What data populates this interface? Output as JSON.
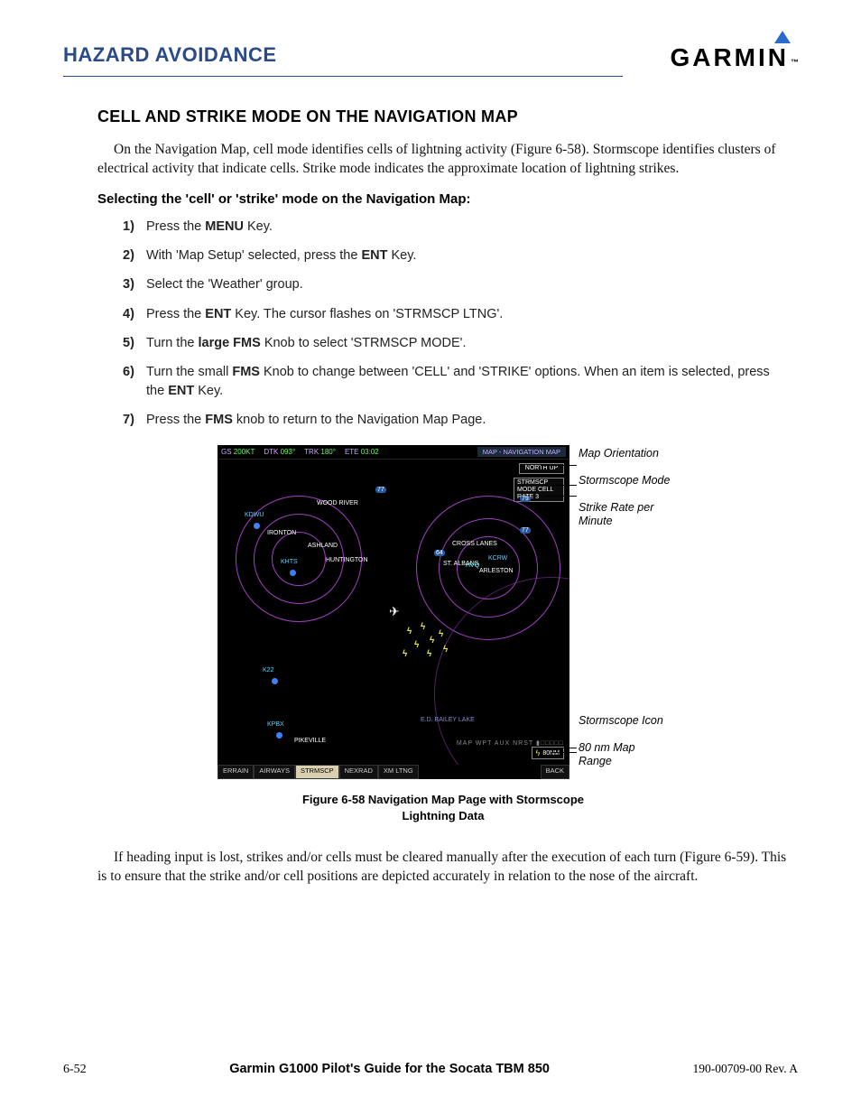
{
  "header": {
    "section": "HAZARD AVOIDANCE",
    "brand": "GARMIN"
  },
  "title": "CELL AND STRIKE MODE ON THE NAVIGATION MAP",
  "intro": "On the Navigation Map, cell mode identifies cells of lightning activity (Figure 6-58).  Stormscope identifies clusters of electrical activity that indicate cells.  Strike mode indicates the approximate location of lightning strikes.",
  "proc_title": "Selecting the 'cell' or 'strike' mode on the Navigation Map:",
  "steps": [
    "Press the <b>MENU</b> Key.",
    "With 'Map Setup' selected, press the <b>ENT</b> Key.",
    "Select the 'Weather' group.",
    "Press the <b>ENT</b> Key.  The cursor flashes on 'STRMSCP LTNG'.",
    "Turn the <b>large FMS</b> Knob to select 'STRMSCP MODE'.",
    "Turn the small <b>FMS</b> Knob to change between 'CELL' and 'STRIKE' options.  When an item is selected, press the <b>ENT</b> Key.",
    "Press the <b>FMS</b> knob to return to the Navigation Map Page."
  ],
  "map": {
    "topbar": {
      "gs_label": "GS",
      "gs_val": "200KT",
      "dtk_label": "DTK",
      "dtk_val": "093°",
      "trk_label": "TRK",
      "trk_val": "180°",
      "ete_label": "ETE",
      "ete_val": "03:02",
      "title": "MAP - NAVIGATION MAP"
    },
    "info_north": "NORTH UP",
    "info_mode": "STRMSCP\nMODE CELL\nRATE 3",
    "places": {
      "wood_river": "WOOD RIVER",
      "ironton": "IRONTON",
      "ashland": "ASHLAND",
      "huntington": "HUNTINGTON",
      "cross": "CROSS LANES",
      "stalbans": "ST. ALBANS",
      "arleston": "ARLESTON",
      "pikeville": "PIKEVILLE",
      "bailey": "E.D. BAILEY LAKE",
      "kdwu": "KDWU",
      "khts": "KHTS",
      "kcrw": "KCRW",
      "k22": "K22",
      "kpbx": "KPBX",
      "hvq": "HVQ"
    },
    "range": "80NM",
    "scale_row": "MAP WPT AUX NRST ▮□□□□□",
    "botbar": [
      "ERRAIN",
      "AIRWAYS",
      "STRMSCP",
      "NEXRAD",
      "XM LTNG",
      "BACK"
    ]
  },
  "callouts": {
    "c1": "Map Orientation",
    "c2": "Stormscope Mode",
    "c3": "Strike Rate per Minute",
    "c4": "Stormscope Icon",
    "c5": "80 nm Map Range"
  },
  "caption": "Figure 6-58  Navigation Map Page with Stormscope Lightning Data",
  "outro": "If heading input is lost, strikes and/or cells must be cleared manually after the execution of each turn (Figure 6-59).  This is to ensure that the strike and/or cell positions are depicted accurately in relation to the nose of the aircraft.",
  "footer": {
    "page": "6-52",
    "title": "Garmin G1000 Pilot's Guide for the Socata TBM 850",
    "rev": "190-00709-00  Rev. A"
  },
  "colors": {
    "header_blue": "#2a4a8a",
    "ring_magenta": "#a040c0",
    "strike_yellow": "#e8e840"
  }
}
